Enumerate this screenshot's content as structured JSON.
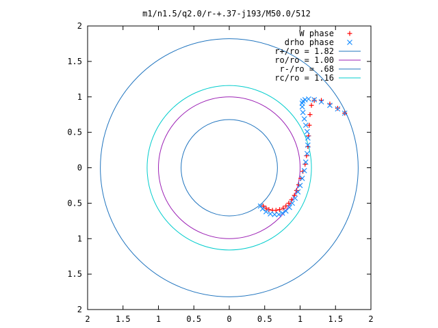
{
  "chart_data": {
    "type": "scatter",
    "title": "m1/n1.5/q2.0/r-+.37-j193/M50.0/512",
    "xlabel": "",
    "ylabel": "",
    "xlim": [
      -2,
      2
    ],
    "ylim": [
      -2,
      2
    ],
    "x_tick_values": [
      -2,
      -1.5,
      -1,
      -0.5,
      0,
      0.5,
      1,
      1.5,
      2
    ],
    "x_tick_labels": [
      "2",
      "1.5",
      "1",
      "0.5",
      "0",
      "0.5",
      "1",
      "1.5",
      "2"
    ],
    "y_tick_values": [
      2,
      1.5,
      1,
      0.5,
      0,
      -0.5,
      -1,
      -1.5,
      -2
    ],
    "y_tick_labels": [
      "2",
      "1.5",
      "1",
      "0.5",
      "0",
      "0.5",
      "1",
      "1.5",
      "2"
    ],
    "grid": false,
    "legend_position": "top-right",
    "series": [
      {
        "name": "W phase",
        "marker": "plus",
        "color": "#ff0000",
        "x": [
          0.48,
          0.52,
          0.56,
          0.61,
          0.66,
          0.71,
          0.76,
          0.8,
          0.84,
          0.88,
          0.92,
          0.95,
          0.98,
          1.01,
          1.04,
          1.07,
          1.09,
          1.11,
          1.12,
          1.13,
          1.14,
          1.16,
          1.2,
          1.3,
          1.42,
          1.53,
          1.63
        ],
        "y": [
          -0.54,
          -0.57,
          -0.59,
          -0.6,
          -0.6,
          -0.59,
          -0.57,
          -0.54,
          -0.5,
          -0.45,
          -0.39,
          -0.32,
          -0.24,
          -0.15,
          -0.05,
          0.05,
          0.17,
          0.3,
          0.45,
          0.6,
          0.75,
          0.88,
          0.95,
          0.95,
          0.9,
          0.84,
          0.77
        ]
      },
      {
        "name": "drho phase",
        "marker": "x",
        "color": "#1e90ff",
        "x": [
          0.44,
          0.47,
          0.52,
          0.58,
          0.64,
          0.7,
          0.75,
          0.8,
          0.85,
          0.89,
          0.93,
          0.97,
          1,
          1.03,
          1.06,
          1.08,
          1.1,
          1.11,
          1.11,
          1.1,
          1.08,
          1.06,
          1.04,
          1.03,
          1.03,
          1.04,
          1.07,
          1.12,
          1.2,
          1.3,
          1.42,
          1.53,
          1.63
        ],
        "y": [
          -0.54,
          -0.58,
          -0.62,
          -0.65,
          -0.66,
          -0.66,
          -0.64,
          -0.61,
          -0.56,
          -0.5,
          -0.43,
          -0.34,
          -0.25,
          -0.15,
          -0.04,
          0.08,
          0.2,
          0.32,
          0.42,
          0.51,
          0.6,
          0.69,
          0.78,
          0.86,
          0.91,
          0.94,
          0.96,
          0.97,
          0.96,
          0.93,
          0.88,
          0.83,
          0.77
        ]
      },
      {
        "name": "r+/ro = 1.82",
        "marker": "circle",
        "color": "#1e73be",
        "radius": 1.82
      },
      {
        "name": "ro/ro = 1.00",
        "marker": "circle",
        "color": "#9b1fb4",
        "radius": 1.0
      },
      {
        "name": "r-/ro = .68",
        "marker": "circle",
        "color": "#1e73be",
        "radius": 0.68
      },
      {
        "name": "rc/ro = 1.16",
        "marker": "circle",
        "color": "#00cccc",
        "radius": 1.16
      }
    ]
  }
}
